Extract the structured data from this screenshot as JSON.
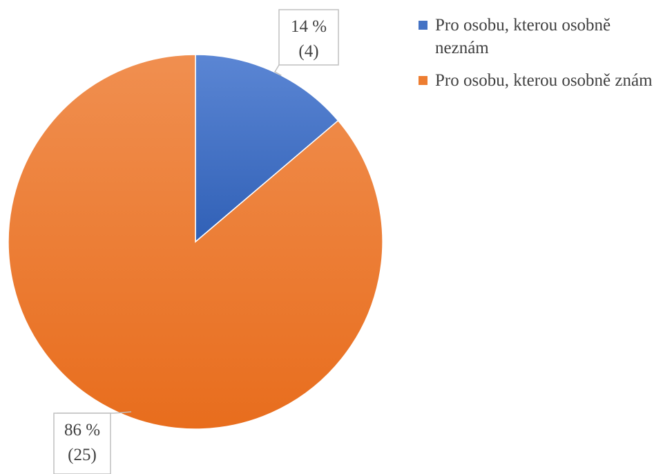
{
  "chart_data": {
    "type": "pie",
    "title": "",
    "slices": [
      {
        "name": "Pro osobu, kterou osobně neznám",
        "value": 4,
        "percent_label": "14 %",
        "count_label": "(4)",
        "color": "#4472C4"
      },
      {
        "name": "Pro osobu, kterou osobně znám",
        "value": 25,
        "percent_label": "86 %",
        "count_label": "(25)",
        "color": "#ED7D31"
      }
    ],
    "legend_position": "top-right",
    "start_angle": "12 o'clock",
    "direction": "clockwise"
  }
}
